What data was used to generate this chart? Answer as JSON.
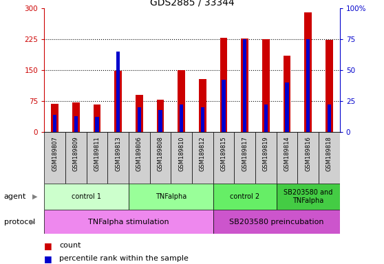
{
  "title": "GDS2885 / 33344",
  "samples": [
    "GSM189807",
    "GSM189809",
    "GSM189811",
    "GSM189813",
    "GSM189806",
    "GSM189808",
    "GSM189810",
    "GSM189812",
    "GSM189815",
    "GSM189817",
    "GSM189819",
    "GSM189814",
    "GSM189816",
    "GSM189818"
  ],
  "count_values": [
    68,
    72,
    66,
    148,
    90,
    78,
    150,
    128,
    228,
    226,
    224,
    185,
    290,
    222
  ],
  "percentile_values": [
    14,
    13,
    12,
    65,
    20,
    18,
    22,
    20,
    42,
    75,
    22,
    40,
    75,
    22
  ],
  "ylim_left": [
    0,
    300
  ],
  "ylim_right": [
    0,
    100
  ],
  "yticks_left": [
    0,
    75,
    150,
    225,
    300
  ],
  "yticks_right": [
    0,
    25,
    50,
    75,
    100
  ],
  "ytick_labels_left": [
    "0",
    "75",
    "150",
    "225",
    "300"
  ],
  "ytick_labels_right": [
    "0",
    "25",
    "50",
    "75",
    "100%"
  ],
  "bar_color": "#cc0000",
  "percentile_color": "#0000cc",
  "agent_groups": [
    {
      "label": "control 1",
      "start": 0,
      "end": 3,
      "color": "#ccffcc"
    },
    {
      "label": "TNFalpha",
      "start": 4,
      "end": 7,
      "color": "#99ff99"
    },
    {
      "label": "control 2",
      "start": 8,
      "end": 10,
      "color": "#66ee66"
    },
    {
      "label": "SB203580 and\nTNFalpha",
      "start": 11,
      "end": 13,
      "color": "#44cc44"
    }
  ],
  "protocol_groups": [
    {
      "label": "TNFalpha stimulation",
      "start": 0,
      "end": 7,
      "color": "#ee88ee"
    },
    {
      "label": "SB203580 preincubation",
      "start": 8,
      "end": 13,
      "color": "#cc55cc"
    }
  ],
  "bar_width": 0.35,
  "background_color": "#ffffff",
  "title_fontsize": 10,
  "tick_fontsize": 7.5,
  "sample_fontsize": 6,
  "label_fontsize": 8
}
